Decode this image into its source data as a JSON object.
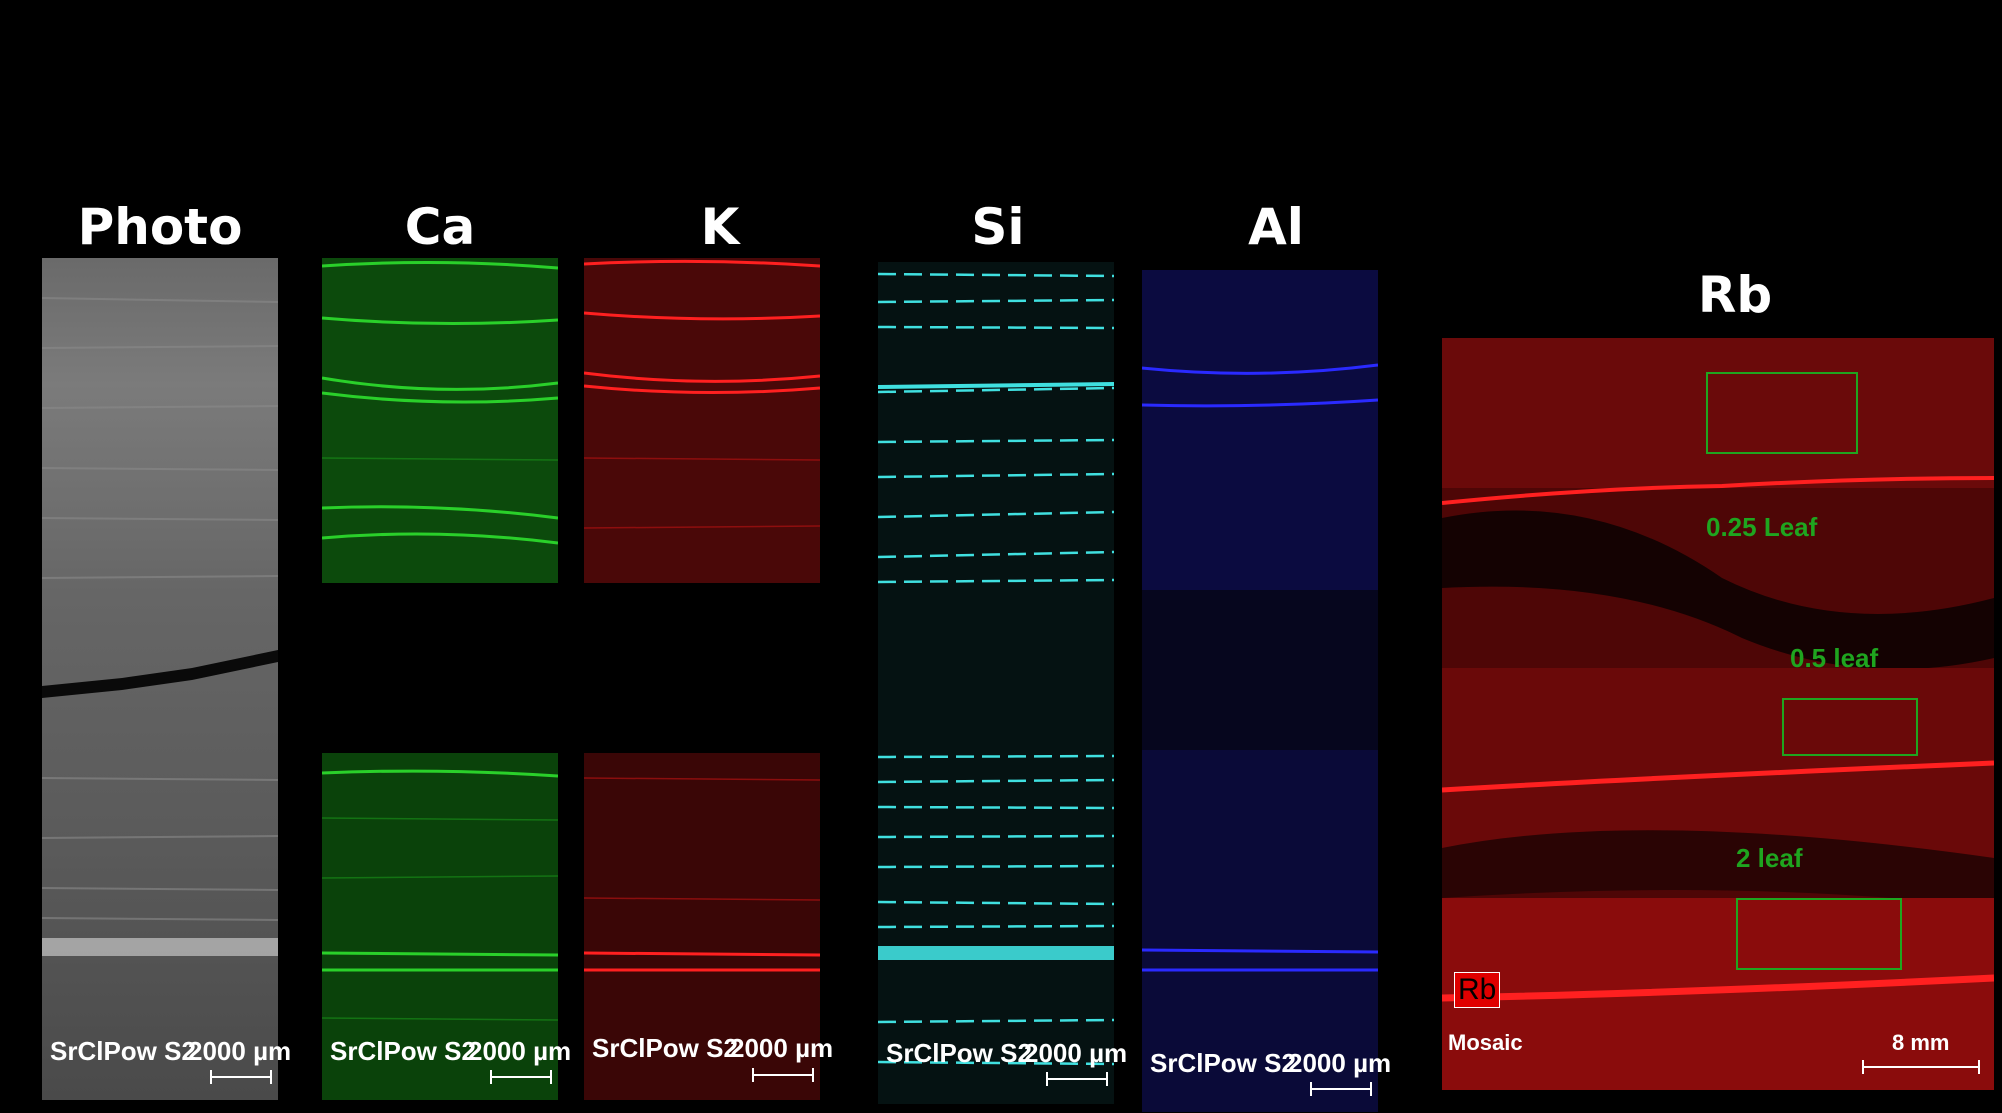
{
  "panels": [
    {
      "id": "photo",
      "title": "Photo",
      "caption": "SrClPow S2",
      "scale": "2000 µm",
      "color": "#a0a0a0"
    },
    {
      "id": "ca",
      "title": "Ca",
      "caption": "SrClPow S2",
      "scale": "2000 µm",
      "color": "#20c020"
    },
    {
      "id": "k",
      "title": "K",
      "caption": "SrClPow S2",
      "scale": "2000 µm",
      "color": "#e01010"
    },
    {
      "id": "si",
      "title": "Si",
      "caption": "SrClPow S2",
      "scale": "2000 µm",
      "color": "#40e0e0"
    },
    {
      "id": "al",
      "title": "Al",
      "caption": "SrClPow S2",
      "scale": "2000 µm",
      "color": "#2020e8"
    }
  ],
  "rb": {
    "title": "Rb",
    "badge": "Rb",
    "mosaic": "Mosaic",
    "scale": "8 mm",
    "color": "#e01010",
    "roi_color": "#1fa51f",
    "rois": [
      {
        "label": "0.25 Leaf"
      },
      {
        "label": "0.5 leaf"
      },
      {
        "label": "2 leaf"
      }
    ]
  }
}
